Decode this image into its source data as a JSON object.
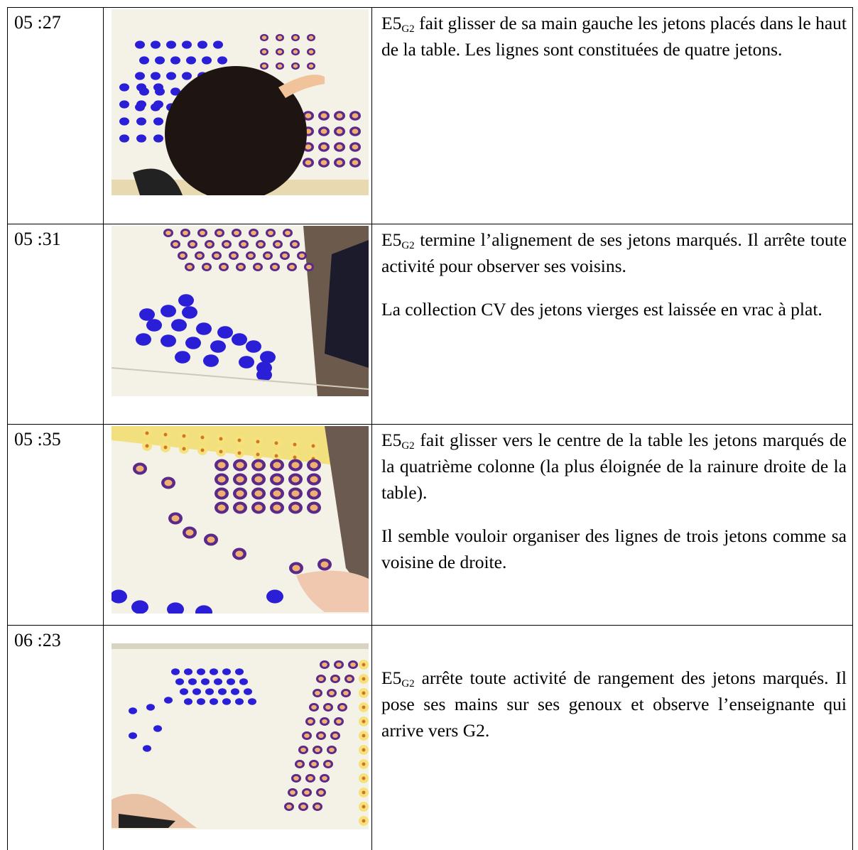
{
  "rows": [
    {
      "time": "05 :27",
      "paragraphs": [
        {
          "subject": "E5",
          "subscript": "G2",
          "text": "fait glisser de sa main gauche les jetons placés dans le haut de la table. Les lignes sont constituées de quatre jetons."
        }
      ]
    },
    {
      "time": "05 :31",
      "paragraphs": [
        {
          "subject": "E5",
          "subscript": "G2",
          "text": "termine l’alignement de ses jetons marqués. Il arrête toute activité pour observer ses voisins."
        },
        {
          "text": "La collection CV des jetons vierges est laissée en vrac à plat."
        }
      ]
    },
    {
      "time": "05 :35",
      "paragraphs": [
        {
          "subject": "E5",
          "subscript": "G2",
          "text": "fait glisser vers le centre de la table les jetons marqués de la quatrième colonne (la plus éloignée de la rainure droite de la table)."
        },
        {
          "text": "Il semble vouloir organiser des lignes de trois jetons comme sa voisine de droite."
        }
      ]
    },
    {
      "time": "06 :23",
      "paragraphs": [
        {
          "subject": "E5",
          "subscript": "G2",
          "text": "arrête toute activité de rangement des jetons marqués. Il pose ses mains sur ses genoux et observe l’enseignante qui arrive vers G2."
        }
      ]
    }
  ]
}
